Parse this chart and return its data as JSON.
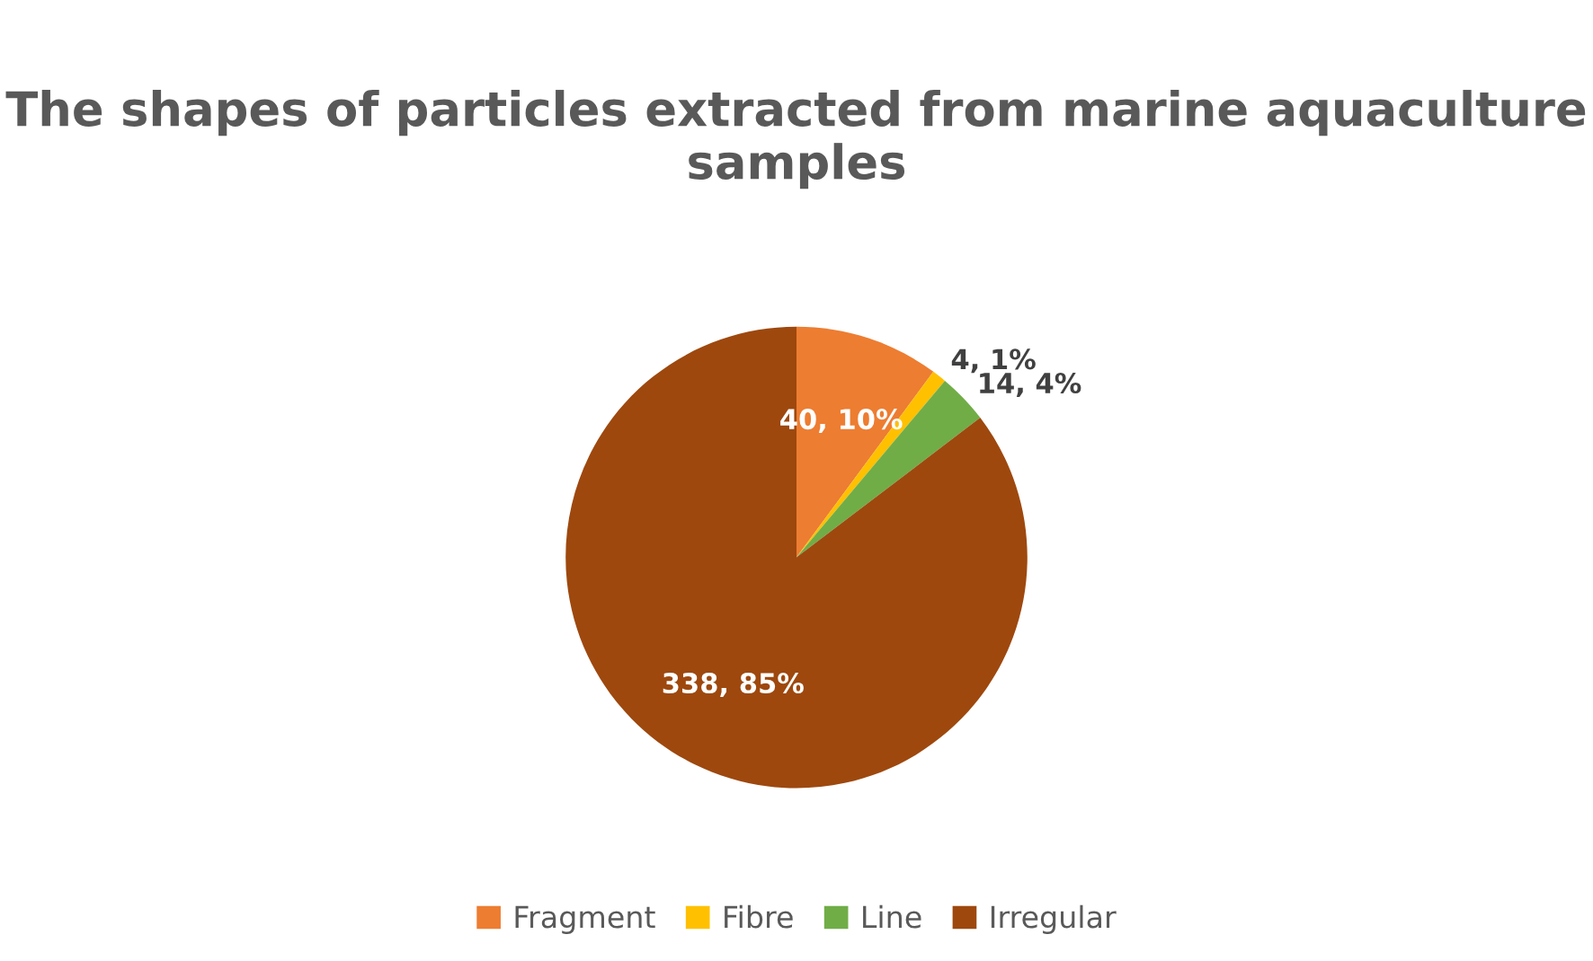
{
  "chart_data": {
    "type": "pie",
    "title": "The shapes of particles extracted from marine aquaculture samples",
    "categories": [
      "Fragment",
      "Fibre",
      "Line",
      "Irregular"
    ],
    "values": [
      40,
      4,
      14,
      338
    ],
    "colors": [
      "#ed7d31",
      "#ffc000",
      "#70ad47",
      "#9e480e"
    ],
    "value_labels": [
      "40, 10%",
      "4, 1%",
      "14, 4%",
      "338, 85%"
    ],
    "legend": "bottom"
  }
}
